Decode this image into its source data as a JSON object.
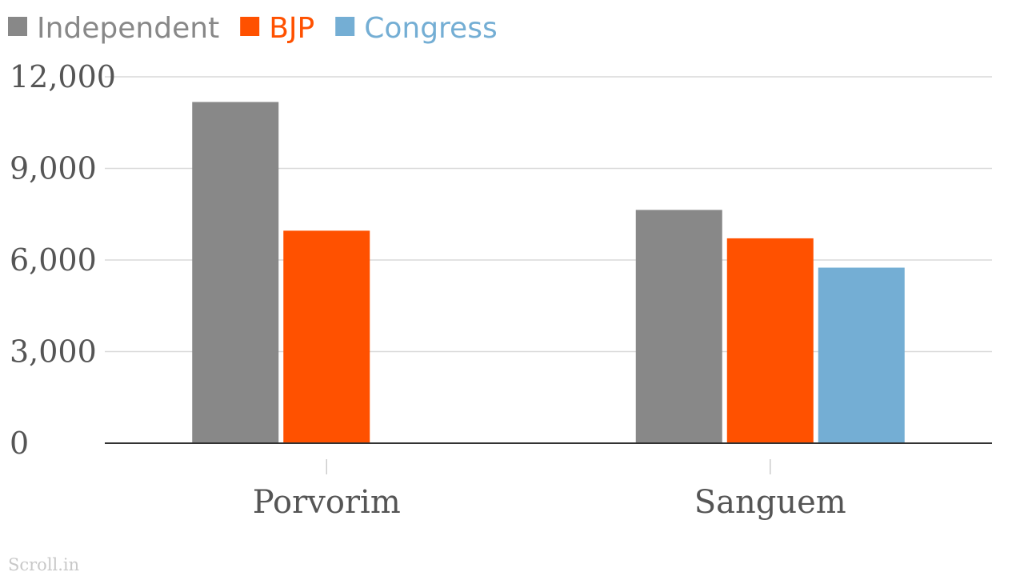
{
  "chart_data": {
    "type": "bar",
    "categories": [
      "Porvorim",
      "Sanguem"
    ],
    "series": [
      {
        "name": "Independent",
        "color": "#888888",
        "values": [
          11175,
          7640
        ]
      },
      {
        "name": "BJP",
        "color": "#ff5100",
        "values": [
          6960,
          6710
        ]
      },
      {
        "name": "Congress",
        "color": "#74aed4",
        "values": [
          null,
          5750
        ]
      }
    ],
    "y_ticks": [
      "0",
      "3,000",
      "6,000",
      "9,000",
      "12,000"
    ],
    "ylim": [
      0,
      12000
    ],
    "grid": true,
    "legend": "top-left"
  },
  "source": "Scroll.in"
}
